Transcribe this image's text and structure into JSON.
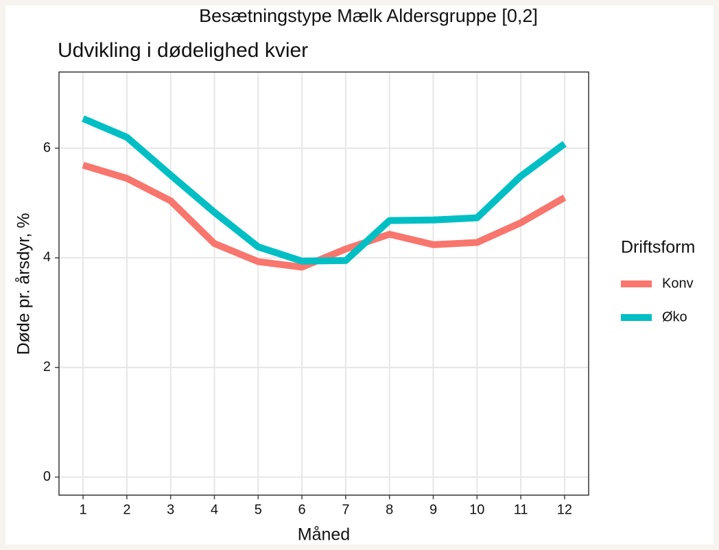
{
  "chart_data": {
    "type": "line",
    "title": "Besætningstype Mælk Aldersgruppe [0,2]",
    "subtitle": "Udvikling i dødelighed kvier",
    "x_label": "Måned",
    "y_label": "Døde pr. årsdyr, %",
    "x": [
      1,
      2,
      3,
      4,
      5,
      6,
      7,
      8,
      9,
      10,
      11,
      12
    ],
    "series": [
      {
        "name": "Konv",
        "color": "#f8766d",
        "values": [
          5.69,
          5.45,
          5.04,
          4.26,
          3.93,
          3.83,
          4.16,
          4.43,
          4.24,
          4.28,
          4.64,
          5.1
        ]
      },
      {
        "name": "Øko",
        "color": "#00bfc4",
        "values": [
          6.54,
          6.2,
          5.51,
          4.83,
          4.2,
          3.94,
          3.95,
          4.68,
          4.69,
          4.73,
          5.49,
          6.08
        ]
      }
    ],
    "legend_title": "Driftsform",
    "legend": "right",
    "xlim": [
      0.45,
      12.55
    ],
    "xticks": [
      1,
      2,
      3,
      4,
      5,
      6,
      7,
      8,
      9,
      10,
      11,
      12
    ],
    "ylim": [
      -0.33,
      7.39
    ],
    "yticks": [
      0,
      2,
      4,
      6
    ],
    "grid": true
  }
}
